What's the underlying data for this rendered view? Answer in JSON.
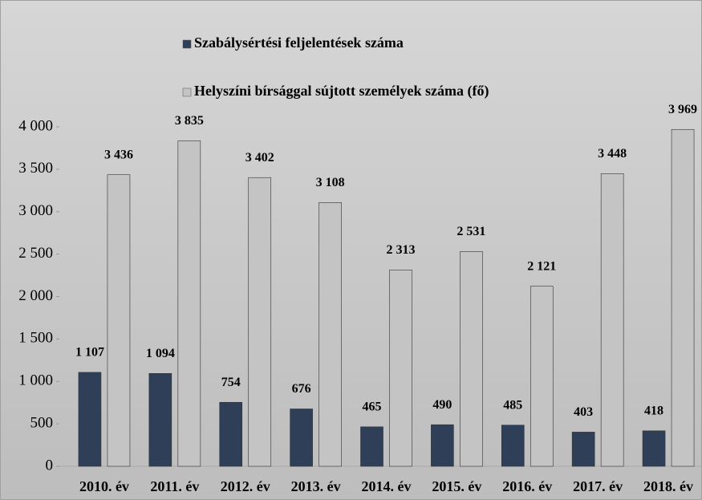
{
  "chart_data": {
    "type": "bar",
    "categories": [
      "2010. év",
      "2011. év",
      "2012. év",
      "2013. év",
      "2014. év",
      "2015. év",
      "2016. év",
      "2017. év",
      "2018. év"
    ],
    "series": [
      {
        "name": "Szabálysértési feljelentések száma",
        "color": "#2f3f58",
        "values": [
          1107,
          1094,
          754,
          676,
          465,
          490,
          485,
          403,
          418
        ],
        "value_labels": [
          "1 107",
          "1 094",
          "754",
          "676",
          "465",
          "490",
          "485",
          "403",
          "418"
        ]
      },
      {
        "name": "Helyszíni bírsággal sújtott személyek száma (fő)",
        "color": "#c4c4c4",
        "values": [
          3436,
          3835,
          3402,
          3108,
          2313,
          2531,
          2121,
          3448,
          3969
        ],
        "value_labels": [
          "3 436",
          "3 835",
          "3 402",
          "3 108",
          "2 313",
          "2 531",
          "2 121",
          "3 448",
          "3 969"
        ]
      }
    ],
    "ylim": [
      0,
      4000
    ],
    "yticks": [
      0,
      500,
      {
        "value": 1000,
        "label": "1 000"
      },
      {
        "value": 1500,
        "label": "1 500"
      },
      {
        "value": 2000,
        "label": "2 000"
      },
      {
        "value": 2500,
        "label": "2 500"
      },
      {
        "value": 3000,
        "label": "3 000"
      },
      {
        "value": 3500,
        "label": "3 500"
      },
      {
        "value": 4000,
        "label": "4 000"
      }
    ],
    "legend": "top"
  }
}
